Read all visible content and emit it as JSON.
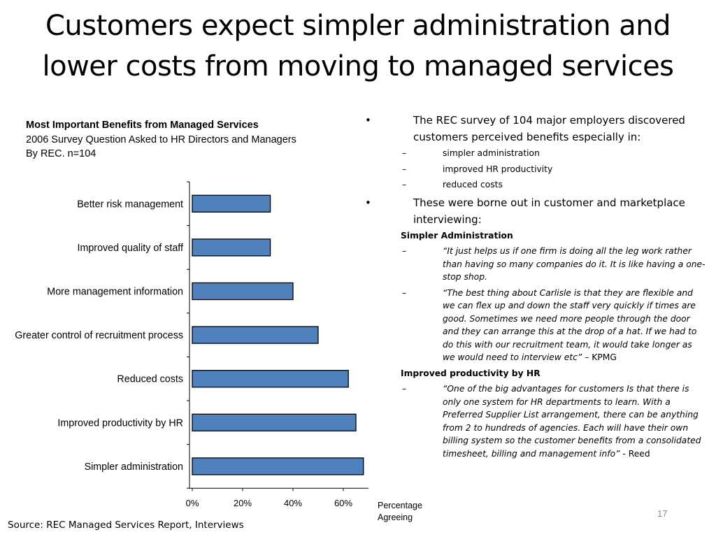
{
  "slide": {
    "title_line1": "Customers expect simpler administration and",
    "title_line2": "lower costs from moving to managed services",
    "source": "Source: REC Managed Services Report, Interviews",
    "page_number": "17"
  },
  "chart_data": {
    "type": "bar",
    "orientation": "horizontal",
    "title": "Most Important Benefits from Managed Services",
    "subtitle_line1": "2006 Survey Question Asked to HR  Directors and Managers",
    "subtitle_line2": "By REC. n=104",
    "categories": [
      "Better risk management",
      "Improved quality of staff",
      "More management information",
      "Greater control of recruitment process",
      "Reduced costs",
      "Improved productivity by HR",
      "Simpler administration"
    ],
    "values": [
      31,
      31,
      40,
      50,
      62,
      65,
      68
    ],
    "xlim": [
      0,
      70
    ],
    "x_ticks": [
      "0%",
      "20%",
      "40%",
      "60%"
    ],
    "x_tick_values": [
      0,
      20,
      40,
      60
    ],
    "xlabel_line1": "Percentage",
    "xlabel_line2": "Agreeing",
    "bar_color": "#4f81bd",
    "grid": false
  },
  "bullets": {
    "b1": "The REC survey of 104 major employers discovered customers perceived benefits especially in:",
    "b1_sub": [
      "simpler administration",
      "improved HR productivity",
      "reduced costs"
    ],
    "b2": "These were borne out in customer and marketplace interviewing:",
    "h1": "Simpler Administration",
    "q1": "“It just helps us if one firm is doing all the leg work rather than having so many companies do it. It is like having a one-stop shop.",
    "q2": "“The best thing about Carlisle is that they are flexible and we can flex up and down the staff very quickly if times are good. Sometimes we need more people through the door and they can arrange this at the drop of a hat. If we had to do this with our recruitment team, it would take longer as we would need to interview etc”",
    "q2_attr": " – KPMG",
    "h2": "Improved productivity by HR",
    "q3": "“One of the big advantages for customers Is that there is only one system for HR departments to learn. With a Preferred Supplier List arrangement, there can be anything from 2 to hundreds of agencies. Each will have their own billing system so the customer benefits from a consolidated timesheet, billing and management info”",
    "q3_attr": " - Reed",
    "bullet_mark": "•",
    "dash_mark": "–"
  }
}
